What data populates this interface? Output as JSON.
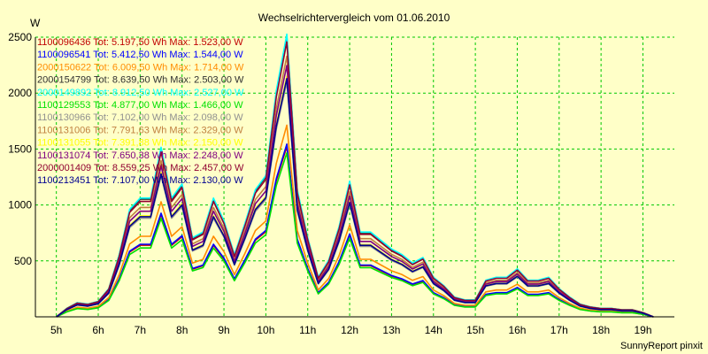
{
  "chart_data": {
    "type": "line",
    "title": "Wechselrichtervergleich vom 01.06.2010",
    "y_unit": "W",
    "ylim": [
      0,
      2500
    ],
    "y_ticks": [
      500,
      1000,
      1500,
      2000,
      2500
    ],
    "xlim": [
      4.5,
      19.75
    ],
    "x_ticks": [
      5,
      6,
      7,
      8,
      9,
      10,
      11,
      12,
      13,
      14,
      15,
      16,
      17,
      18,
      19
    ],
    "x_tick_labels": [
      "5h",
      "6h",
      "7h",
      "8h",
      "9h",
      "10h",
      "11h",
      "12h",
      "13h",
      "14h",
      "15h",
      "16h",
      "17h",
      "18h",
      "19h"
    ],
    "grid": true,
    "legend_position": "top-left",
    "credit": "SunnyReport pinxit",
    "x": [
      5.0,
      5.25,
      5.5,
      5.75,
      6.0,
      6.25,
      6.5,
      6.75,
      7.0,
      7.25,
      7.5,
      7.75,
      8.0,
      8.25,
      8.5,
      8.75,
      9.0,
      9.25,
      9.5,
      9.75,
      10.0,
      10.25,
      10.5,
      10.75,
      11.0,
      11.25,
      11.5,
      11.75,
      12.0,
      12.25,
      12.5,
      12.75,
      13.0,
      13.25,
      13.5,
      13.75,
      14.0,
      14.25,
      14.5,
      14.75,
      15.0,
      15.25,
      15.5,
      15.75,
      16.0,
      16.25,
      16.5,
      16.75,
      17.0,
      17.25,
      17.5,
      17.75,
      18.0,
      18.25,
      18.5,
      18.75,
      19.0,
      19.25
    ],
    "profile": [
      0.0,
      0.03,
      0.05,
      0.045,
      0.055,
      0.1,
      0.22,
      0.38,
      0.42,
      0.42,
      0.6,
      0.42,
      0.47,
      0.28,
      0.3,
      0.42,
      0.34,
      0.22,
      0.33,
      0.45,
      0.5,
      0.8,
      1.0,
      0.45,
      0.28,
      0.14,
      0.2,
      0.32,
      0.48,
      0.3,
      0.3,
      0.27,
      0.24,
      0.22,
      0.19,
      0.21,
      0.14,
      0.11,
      0.07,
      0.06,
      0.06,
      0.13,
      0.14,
      0.14,
      0.17,
      0.13,
      0.13,
      0.14,
      0.1,
      0.07,
      0.045,
      0.035,
      0.03,
      0.03,
      0.025,
      0.025,
      0.015,
      0.0
    ],
    "series": [
      {
        "id": "1100096436",
        "tot": "5.197,50",
        "max": "1.523,00",
        "color": "#c00000",
        "peak": 1523
      },
      {
        "id": "1100096541",
        "tot": "5.412,50",
        "max": "1.544,00",
        "color": "#0000ff",
        "peak": 1544
      },
      {
        "id": "2000150622",
        "tot": "6.009,50",
        "max": "1.714,00",
        "color": "#ff8c00",
        "peak": 1714
      },
      {
        "id": "2000154799",
        "tot": "8.639,50",
        "max": "2.503,00",
        "color": "#303030",
        "peak": 2503
      },
      {
        "id": "2000149892",
        "tot": "8.912,50",
        "max": "2.527,00",
        "color": "#00ffff",
        "peak": 2527
      },
      {
        "id": "1100129553",
        "tot": "4.877,00",
        "max": "1.466,00",
        "color": "#00e000",
        "peak": 1466
      },
      {
        "id": "1100130966",
        "tot": "7.102,00",
        "max": "2.098,00",
        "color": "#909090",
        "peak": 2098
      },
      {
        "id": "1100131006",
        "tot": "7.791,63",
        "max": "2.329,00",
        "color": "#c08040",
        "peak": 2329
      },
      {
        "id": "1100131055",
        "tot": "7.391,88",
        "max": "2.150,00",
        "color": "#ffff00",
        "peak": 2150
      },
      {
        "id": "1100131074",
        "tot": "7.650,38",
        "max": "2.248,00",
        "color": "#800080",
        "peak": 2248
      },
      {
        "id": "2000001409",
        "tot": "8.559,25",
        "max": "2.457,00",
        "color": "#900030",
        "peak": 2457
      },
      {
        "id": "1100213451",
        "tot": "7.107,00",
        "max": "2.130,00",
        "color": "#000090",
        "peak": 2130
      }
    ],
    "legend_tot_label": "Tot:",
    "legend_energy_unit": "Wh",
    "legend_max_label": "Max:",
    "legend_power_unit": "W"
  },
  "colors": {
    "background": "#ffffc8",
    "grid": "#00c800",
    "axis": "#000000"
  }
}
